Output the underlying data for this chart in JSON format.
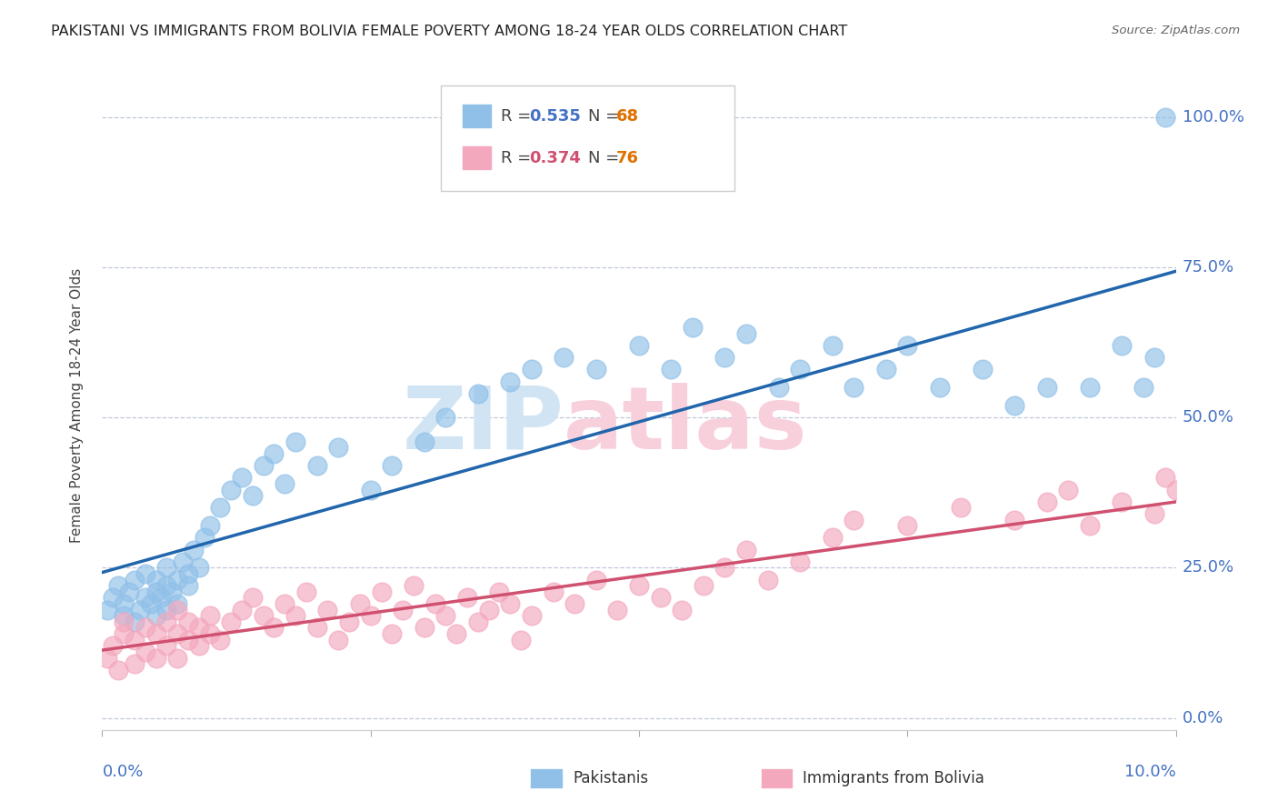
{
  "title": "PAKISTANI VS IMMIGRANTS FROM BOLIVIA FEMALE POVERTY AMONG 18-24 YEAR OLDS CORRELATION CHART",
  "source": "Source: ZipAtlas.com",
  "ylabel": "Female Poverty Among 18-24 Year Olds",
  "ytick_labels": [
    "0.0%",
    "25.0%",
    "50.0%",
    "75.0%",
    "100.0%"
  ],
  "ytick_values": [
    0.0,
    0.25,
    0.5,
    0.75,
    1.0
  ],
  "xlim": [
    0.0,
    0.1
  ],
  "ylim": [
    -0.02,
    1.06
  ],
  "pakistani_color": "#90c0e8",
  "bolivia_color": "#f4a8be",
  "pakistani_line_color": "#2166ac",
  "bolivia_line_color": "#d05070",
  "pakistani_r": "0.535",
  "pakistani_n": "68",
  "bolivia_r": "0.374",
  "bolivia_n": "76",
  "r_color_pak": "#4472c4",
  "r_color_bol": "#d05070",
  "n_color": "#e07000",
  "watermark_zip_color": "#d0e4f4",
  "watermark_atlas_color": "#f8d0dc",
  "pak_x": [
    0.0005,
    0.001,
    0.0015,
    0.002,
    0.002,
    0.0025,
    0.003,
    0.003,
    0.0035,
    0.004,
    0.004,
    0.0045,
    0.005,
    0.005,
    0.005,
    0.0055,
    0.006,
    0.006,
    0.006,
    0.0065,
    0.007,
    0.007,
    0.0075,
    0.008,
    0.008,
    0.0085,
    0.009,
    0.0095,
    0.01,
    0.011,
    0.012,
    0.013,
    0.014,
    0.015,
    0.016,
    0.017,
    0.018,
    0.02,
    0.022,
    0.025,
    0.027,
    0.03,
    0.032,
    0.035,
    0.038,
    0.04,
    0.043,
    0.046,
    0.05,
    0.053,
    0.055,
    0.058,
    0.06,
    0.063,
    0.065,
    0.068,
    0.07,
    0.073,
    0.075,
    0.078,
    0.082,
    0.085,
    0.088,
    0.092,
    0.095,
    0.097,
    0.098,
    0.099
  ],
  "pak_y": [
    0.18,
    0.2,
    0.22,
    0.17,
    0.19,
    0.21,
    0.16,
    0.23,
    0.18,
    0.2,
    0.24,
    0.19,
    0.21,
    0.17,
    0.23,
    0.2,
    0.22,
    0.18,
    0.25,
    0.21,
    0.23,
    0.19,
    0.26,
    0.22,
    0.24,
    0.28,
    0.25,
    0.3,
    0.32,
    0.35,
    0.38,
    0.4,
    0.37,
    0.42,
    0.44,
    0.39,
    0.46,
    0.42,
    0.45,
    0.38,
    0.42,
    0.46,
    0.5,
    0.54,
    0.56,
    0.58,
    0.6,
    0.58,
    0.62,
    0.58,
    0.65,
    0.6,
    0.64,
    0.55,
    0.58,
    0.62,
    0.55,
    0.58,
    0.62,
    0.55,
    0.58,
    0.52,
    0.55,
    0.55,
    0.62,
    0.55,
    0.6,
    1.0
  ],
  "bol_x": [
    0.0005,
    0.001,
    0.0015,
    0.002,
    0.002,
    0.003,
    0.003,
    0.004,
    0.004,
    0.005,
    0.005,
    0.006,
    0.006,
    0.007,
    0.007,
    0.007,
    0.008,
    0.008,
    0.009,
    0.009,
    0.01,
    0.01,
    0.011,
    0.012,
    0.013,
    0.014,
    0.015,
    0.016,
    0.017,
    0.018,
    0.019,
    0.02,
    0.021,
    0.022,
    0.023,
    0.024,
    0.025,
    0.026,
    0.027,
    0.028,
    0.029,
    0.03,
    0.031,
    0.032,
    0.033,
    0.034,
    0.035,
    0.036,
    0.037,
    0.038,
    0.039,
    0.04,
    0.042,
    0.044,
    0.046,
    0.048,
    0.05,
    0.052,
    0.054,
    0.056,
    0.058,
    0.06,
    0.062,
    0.065,
    0.068,
    0.07,
    0.075,
    0.08,
    0.085,
    0.088,
    0.09,
    0.092,
    0.095,
    0.098,
    0.099,
    0.1
  ],
  "bol_y": [
    0.1,
    0.12,
    0.08,
    0.14,
    0.16,
    0.09,
    0.13,
    0.11,
    0.15,
    0.1,
    0.14,
    0.12,
    0.16,
    0.1,
    0.14,
    0.18,
    0.13,
    0.16,
    0.12,
    0.15,
    0.14,
    0.17,
    0.13,
    0.16,
    0.18,
    0.2,
    0.17,
    0.15,
    0.19,
    0.17,
    0.21,
    0.15,
    0.18,
    0.13,
    0.16,
    0.19,
    0.17,
    0.21,
    0.14,
    0.18,
    0.22,
    0.15,
    0.19,
    0.17,
    0.14,
    0.2,
    0.16,
    0.18,
    0.21,
    0.19,
    0.13,
    0.17,
    0.21,
    0.19,
    0.23,
    0.18,
    0.22,
    0.2,
    0.18,
    0.22,
    0.25,
    0.28,
    0.23,
    0.26,
    0.3,
    0.33,
    0.32,
    0.35,
    0.33,
    0.36,
    0.38,
    0.32,
    0.36,
    0.34,
    0.4,
    0.38
  ]
}
